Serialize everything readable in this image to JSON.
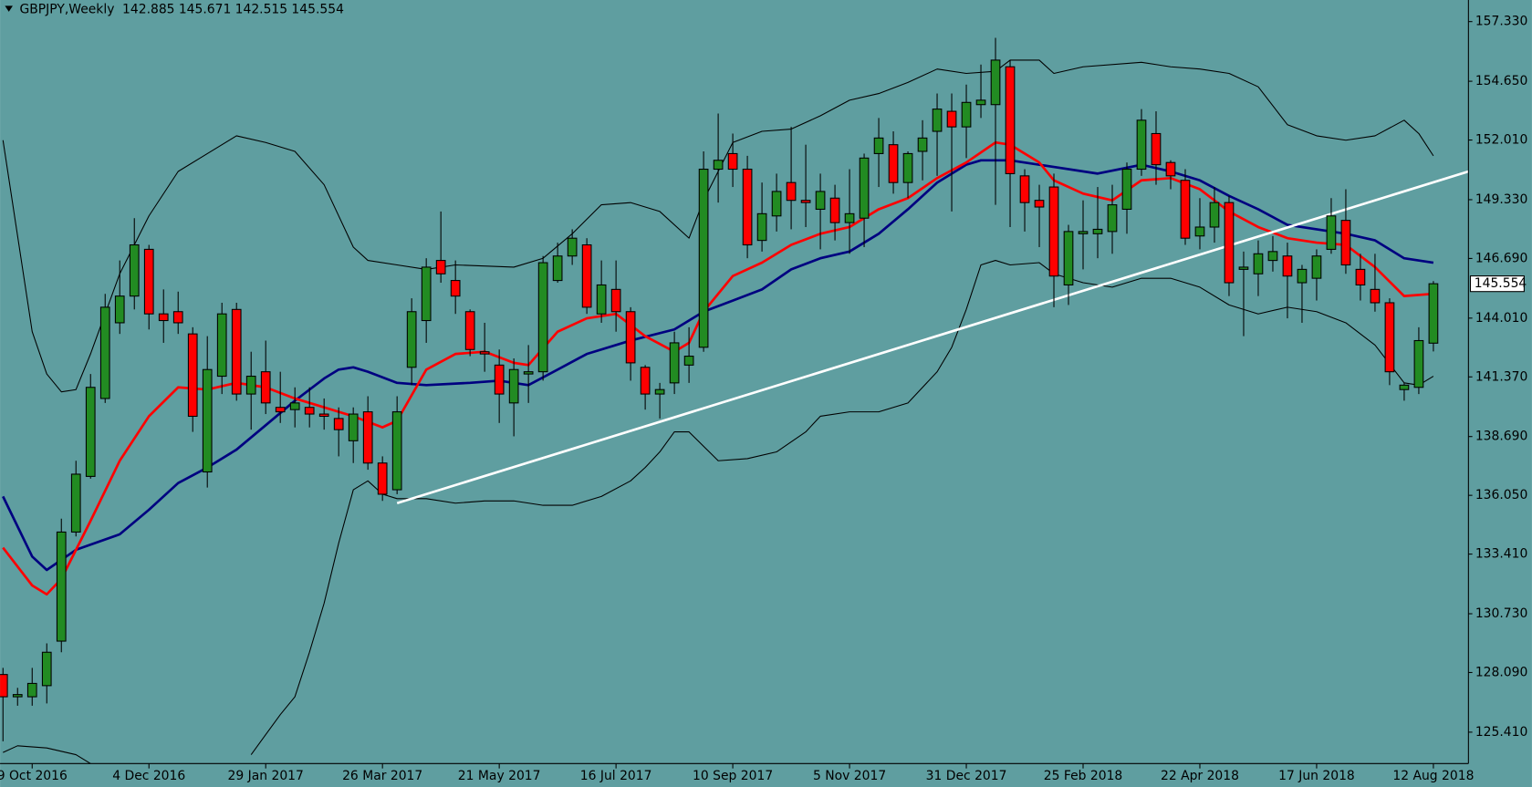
{
  "chart_data": {
    "type": "candlestick",
    "title": "GBPJPY,Weekly",
    "up_color": "#228b22",
    "down_color": "#ff0000",
    "background": "#5f9ea0",
    "categories": [
      null,
      null,
      "9 Oct 2016",
      null,
      null,
      null,
      null,
      null,
      null,
      null,
      "4 Dec 2016",
      null,
      null,
      null,
      null,
      null,
      null,
      null,
      "29 Jan 2017",
      null,
      null,
      null,
      null,
      null,
      null,
      null,
      "26 Mar 2017",
      null,
      null,
      null,
      null,
      null,
      null,
      null,
      "21 May 2017",
      null,
      null,
      null,
      null,
      null,
      null,
      null,
      "16 Jul 2017",
      null,
      null,
      null,
      null,
      null,
      null,
      null,
      "10 Sep 2017",
      null,
      null,
      null,
      null,
      null,
      null,
      null,
      "5 Nov 2017",
      null,
      null,
      null,
      null,
      null,
      null,
      null,
      "31 Dec 2017",
      null,
      null,
      null,
      null,
      null,
      null,
      null,
      "25 Feb 2018",
      null,
      null,
      null,
      null,
      null,
      null,
      null,
      "22 Apr 2018",
      null,
      null,
      null,
      null,
      null,
      null,
      null,
      "17 Jun 2018",
      null,
      null,
      null,
      null,
      null,
      null,
      null,
      "12 Aug 2018"
    ],
    "open": [
      128.0,
      127.0,
      127.0,
      127.5,
      129.5,
      134.4,
      136.9,
      140.4,
      143.8,
      145.0,
      147.1,
      144.2,
      144.3,
      143.3,
      137.1,
      141.4,
      144.4,
      140.6,
      141.6,
      140.0,
      139.9,
      140.0,
      139.7,
      139.5,
      138.5,
      139.8,
      137.5,
      136.3,
      141.8,
      143.9,
      146.6,
      145.7,
      144.3,
      142.5,
      141.9,
      140.2,
      141.5,
      141.6,
      145.7,
      146.8,
      147.3,
      144.2,
      145.3,
      144.3,
      141.8,
      140.6,
      141.1,
      141.9,
      142.7,
      150.7,
      151.4,
      150.7,
      147.5,
      148.6,
      150.1,
      149.3,
      148.9,
      149.4,
      148.3,
      148.5,
      151.4,
      151.8,
      150.1,
      151.5,
      152.4,
      153.3,
      152.6,
      153.6,
      153.6,
      155.3,
      150.4,
      149.3,
      149.9,
      145.5,
      147.8,
      147.8,
      147.9,
      148.9,
      150.7,
      152.3,
      151.0,
      150.2,
      147.7,
      148.1,
      149.2,
      146.2,
      146.0,
      146.6,
      146.8,
      145.6,
      145.8,
      147.1,
      148.4,
      146.2,
      145.3,
      144.7,
      140.8,
      140.9,
      142.885
    ],
    "high": [
      128.3,
      127.4,
      128.3,
      129.4,
      135.0,
      137.6,
      141.5,
      145.1,
      146.6,
      148.5,
      147.3,
      145.3,
      145.2,
      143.6,
      143.2,
      144.7,
      144.7,
      142.5,
      143.0,
      141.6,
      140.9,
      140.9,
      140.4,
      140.0,
      140.0,
      140.5,
      137.8,
      140.5,
      144.9,
      146.7,
      148.8,
      146.6,
      144.4,
      143.8,
      142.6,
      142.2,
      142.8,
      146.8,
      147.4,
      148.0,
      147.6,
      146.6,
      146.6,
      144.5,
      141.9,
      141.1,
      143.4,
      143.6,
      151.5,
      153.2,
      152.3,
      151.3,
      150.1,
      150.5,
      152.6,
      151.8,
      150.5,
      150.0,
      150.7,
      151.4,
      153.0,
      152.4,
      151.5,
      152.9,
      154.1,
      154.1,
      154.5,
      155.4,
      156.6,
      155.6,
      150.7,
      150.0,
      150.5,
      148.2,
      149.3,
      149.9,
      150.0,
      151.0,
      153.4,
      153.3,
      151.1,
      150.7,
      149.4,
      149.9,
      149.5,
      147.0,
      147.5,
      147.7,
      147.4,
      146.4,
      147.1,
      149.4,
      149.8,
      146.9,
      146.9,
      144.9,
      141.1,
      143.6,
      145.671
    ],
    "low": [
      125.0,
      126.6,
      126.6,
      126.7,
      129.0,
      134.2,
      136.8,
      140.2,
      143.3,
      144.4,
      143.5,
      142.9,
      143.3,
      138.9,
      136.4,
      140.6,
      140.3,
      139.0,
      139.7,
      139.3,
      139.1,
      139.1,
      139.0,
      137.8,
      137.5,
      137.2,
      135.8,
      136.1,
      141.0,
      142.9,
      145.6,
      144.2,
      142.3,
      141.6,
      139.3,
      138.7,
      140.2,
      141.2,
      145.6,
      146.4,
      144.2,
      143.8,
      143.4,
      141.2,
      139.9,
      139.5,
      140.6,
      141.1,
      142.5,
      149.2,
      149.9,
      146.7,
      147.0,
      147.9,
      148.0,
      148.1,
      147.1,
      147.5,
      146.9,
      147.2,
      149.9,
      149.6,
      149.4,
      150.2,
      150.4,
      148.8,
      151.2,
      153.0,
      149.1,
      148.1,
      147.9,
      147.2,
      144.5,
      144.6,
      146.2,
      146.7,
      146.9,
      147.8,
      150.4,
      150.0,
      149.8,
      147.3,
      147.1,
      147.4,
      145.0,
      143.2,
      145.0,
      146.1,
      144.0,
      143.8,
      144.8,
      146.9,
      146.0,
      144.8,
      144.3,
      141.0,
      140.3,
      140.6,
      142.515
    ],
    "close": [
      127.0,
      127.1,
      127.6,
      129.0,
      134.4,
      137.0,
      140.9,
      144.5,
      145.0,
      147.3,
      144.2,
      143.9,
      143.8,
      139.6,
      141.7,
      144.2,
      140.6,
      141.4,
      140.2,
      139.8,
      140.2,
      139.7,
      139.6,
      139.0,
      139.7,
      137.5,
      136.1,
      139.8,
      144.3,
      146.3,
      146.0,
      145.0,
      142.6,
      142.4,
      140.6,
      141.7,
      141.6,
      146.5,
      146.8,
      147.6,
      144.5,
      145.5,
      144.3,
      142.0,
      140.6,
      140.8,
      142.9,
      142.3,
      150.7,
      151.1,
      150.7,
      147.3,
      148.7,
      149.7,
      149.3,
      149.2,
      149.7,
      148.3,
      148.7,
      151.2,
      152.1,
      150.1,
      151.4,
      152.1,
      153.4,
      152.6,
      153.7,
      153.8,
      155.6,
      150.5,
      149.2,
      149.0,
      145.9,
      147.9,
      147.9,
      148.0,
      149.1,
      150.7,
      152.9,
      150.9,
      150.4,
      147.6,
      148.1,
      149.2,
      145.6,
      146.3,
      146.9,
      147.0,
      145.9,
      146.2,
      146.8,
      148.6,
      146.4,
      145.5,
      144.7,
      141.6,
      141.0,
      143.0,
      145.554
    ],
    "lines": [
      {
        "color": "#000000",
        "width": 1,
        "x": [
          0,
          2,
          3,
          4,
          5,
          6,
          8,
          10,
          12,
          14,
          16,
          18,
          20,
          22,
          24,
          25,
          27,
          29,
          31,
          35,
          37,
          39,
          41,
          43,
          45,
          47,
          48,
          50,
          52,
          54,
          56,
          58,
          60,
          62,
          64,
          66,
          68,
          69,
          71,
          72,
          74,
          78,
          80,
          82,
          84,
          86,
          88,
          90,
          92,
          94,
          96,
          97,
          98
        ],
        "values": [
          152.0,
          143.4,
          141.5,
          140.7,
          140.8,
          142.4,
          146.0,
          148.6,
          150.6,
          151.4,
          152.2,
          151.9,
          151.5,
          150.0,
          147.2,
          146.6,
          146.4,
          146.2,
          146.4,
          146.3,
          146.7,
          147.8,
          149.1,
          149.2,
          148.8,
          147.6,
          149.3,
          151.9,
          152.4,
          152.5,
          153.1,
          153.8,
          154.1,
          154.6,
          155.2,
          155.0,
          155.1,
          155.6,
          155.6,
          155.0,
          155.3,
          155.5,
          155.3,
          155.2,
          155.0,
          154.4,
          152.7,
          152.2,
          152.0,
          152.2,
          152.9,
          152.3,
          151.3
        ]
      },
      {
        "color": "#000000",
        "width": 1,
        "x": [
          0,
          1,
          3,
          5,
          6,
          7,
          16,
          17,
          18,
          19,
          20,
          21,
          22,
          23,
          24,
          25,
          26,
          27,
          29,
          31,
          33,
          35,
          37,
          39,
          41,
          43,
          44,
          45,
          46,
          47,
          49,
          51,
          53,
          55,
          56,
          58,
          60,
          62,
          64,
          65,
          66,
          67,
          68,
          69,
          71,
          72,
          74,
          76,
          78,
          80,
          82,
          84,
          86,
          88,
          90,
          92,
          94,
          96,
          97,
          98
        ],
        "values": [
          124.5,
          124.8,
          124.7,
          124.4,
          124.0,
          null,
          null,
          124.4,
          125.3,
          126.2,
          127.0,
          129.0,
          131.2,
          133.9,
          136.3,
          136.7,
          136.1,
          135.9,
          135.9,
          135.7,
          135.8,
          135.8,
          135.6,
          135.6,
          136.0,
          136.7,
          137.3,
          138.0,
          138.9,
          138.9,
          137.6,
          137.7,
          138.0,
          138.9,
          139.6,
          139.8,
          139.8,
          140.2,
          141.6,
          142.7,
          144.4,
          146.4,
          146.6,
          146.4,
          146.5,
          146.0,
          145.6,
          145.4,
          145.8,
          145.8,
          145.4,
          144.6,
          144.2,
          144.5,
          144.3,
          143.8,
          142.8,
          141.1,
          141.0,
          141.4
        ]
      },
      {
        "color": "#000080",
        "width": 2.5,
        "x": [
          0,
          2,
          3,
          5,
          8,
          10,
          12,
          14,
          16,
          18,
          20,
          22,
          23,
          24,
          25,
          27,
          29,
          32,
          34,
          36,
          38,
          40,
          43,
          46,
          48,
          50,
          52,
          54,
          56,
          58,
          60,
          62,
          64,
          66,
          67,
          69,
          72,
          75,
          78,
          80,
          82,
          84,
          86,
          88,
          90,
          92,
          94,
          96,
          98
        ],
        "values": [
          136.0,
          133.3,
          132.7,
          133.6,
          134.3,
          135.4,
          136.6,
          137.3,
          138.1,
          139.2,
          140.3,
          141.3,
          141.7,
          141.8,
          141.6,
          141.1,
          141.0,
          141.1,
          141.2,
          141.0,
          141.7,
          142.4,
          143.0,
          143.5,
          144.3,
          144.8,
          145.3,
          146.2,
          146.7,
          147.0,
          147.8,
          148.9,
          150.1,
          150.9,
          151.1,
          151.1,
          150.8,
          150.5,
          150.9,
          150.6,
          150.2,
          149.5,
          148.9,
          148.2,
          148.0,
          147.8,
          147.5,
          146.7,
          146.5
        ]
      },
      {
        "color": "#ff0000",
        "width": 2.5,
        "x": [
          0,
          2,
          3,
          4,
          6,
          8,
          10,
          12,
          14,
          16,
          18,
          20,
          22,
          24,
          26,
          27,
          29,
          31,
          33,
          35,
          36,
          38,
          40,
          42,
          44,
          46,
          47,
          48,
          50,
          52,
          54,
          56,
          58,
          60,
          62,
          64,
          66,
          68,
          69,
          71,
          72,
          74,
          76,
          78,
          80,
          82,
          84,
          86,
          88,
          90,
          92,
          94,
          96,
          98
        ],
        "values": [
          133.7,
          132.0,
          131.6,
          132.3,
          134.9,
          137.6,
          139.6,
          140.9,
          140.8,
          141.1,
          140.9,
          140.4,
          140.0,
          139.6,
          139.1,
          139.4,
          141.7,
          142.4,
          142.5,
          142.0,
          141.9,
          143.4,
          144.0,
          144.2,
          143.2,
          142.5,
          142.9,
          144.3,
          145.9,
          146.5,
          147.3,
          147.8,
          148.1,
          148.9,
          149.4,
          150.3,
          151.0,
          151.9,
          151.8,
          151.0,
          150.2,
          149.6,
          149.3,
          150.2,
          150.3,
          149.8,
          148.8,
          148.1,
          147.6,
          147.4,
          147.3,
          146.3,
          145.0,
          145.1
        ]
      },
      {
        "color": "#ffffff",
        "width": 2.5,
        "x": [
          27,
          100.4
        ],
        "values": [
          135.7,
          150.6
        ]
      }
    ],
    "ylim": [
      124.0,
      158.3
    ],
    "yticks": [
      {
        "value": 157.33,
        "label": "157.330"
      },
      {
        "value": 154.65,
        "label": "154.650"
      },
      {
        "value": 152.01,
        "label": "152.010"
      },
      {
        "value": 149.33,
        "label": "149.330"
      },
      {
        "value": 146.69,
        "label": "146.690"
      },
      {
        "value": 144.01,
        "label": "144.010"
      },
      {
        "value": 141.37,
        "label": "141.370"
      },
      {
        "value": 138.69,
        "label": "138.690"
      },
      {
        "value": 136.05,
        "label": "136.050"
      },
      {
        "value": 133.41,
        "label": "133.410"
      },
      {
        "value": 130.73,
        "label": "130.730"
      },
      {
        "value": 128.09,
        "label": "128.090"
      },
      {
        "value": 125.41,
        "label": "125.410"
      }
    ]
  }
}
